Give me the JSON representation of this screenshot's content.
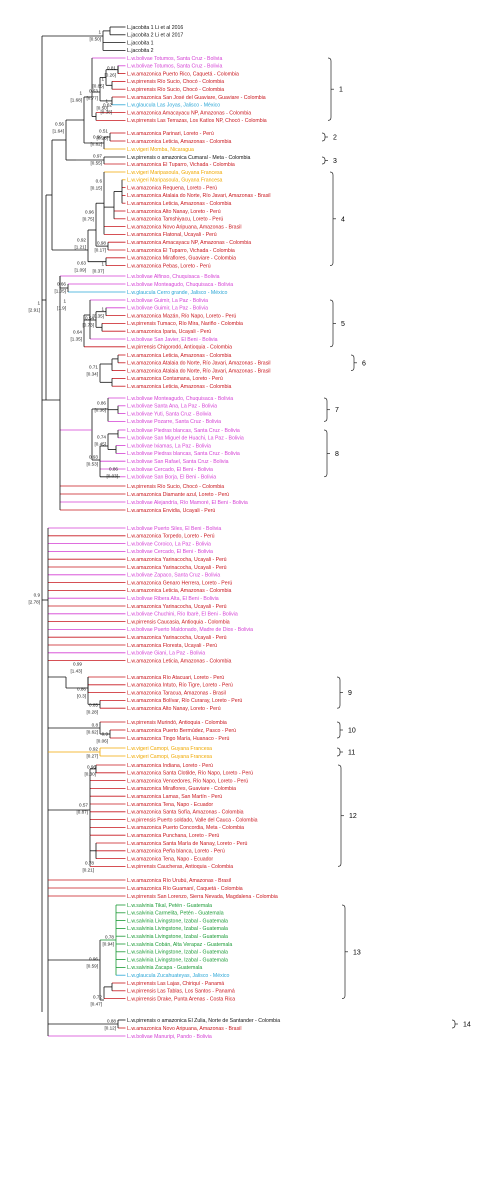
{
  "colors": {
    "black": "#111111",
    "bolivae": "#d43fd4",
    "amazonica": "#c8161d",
    "pirrensis": "#c8161d",
    "vigeri": "#f0a800",
    "glaucula": "#2aa6d6",
    "salvinia": "#1a9a35"
  },
  "support": {
    "s1": "1",
    "s1b": "[0.50]",
    "s2": "0.81",
    "s2b": "[0.26]",
    "s3": "1",
    "s3b": "[0.85]",
    "s4": "0.53",
    "s4b": "[0.77]",
    "s5": "1",
    "s5b": "[0.50]",
    "s6": "0.62",
    "s6b": "[0.38]",
    "s7": "0.51",
    "s7b": "[0.26]",
    "s8": "0.99",
    "s8b": "[0.82]",
    "s9": "1",
    "s9b": "[1.68]",
    "s10": "0.56",
    "s10b": "[1.64]",
    "s11": "0.97",
    "s11b": "[0.55]",
    "s12": "0.6",
    "s12b": "[0.15]",
    "s13": "0.96",
    "s13b": "[0.75]",
    "s14": "0.92",
    "s14b": "[1.21]",
    "s15": "0.98",
    "s15b": "[0.17]",
    "s16": "0.63",
    "s16b": "[1.09]",
    "s17": "1",
    "s17b": "[0.37]",
    "s18": "0.66",
    "s18b": "[1.05]",
    "s19": "1",
    "s19b": "[2.91]",
    "s20": "1",
    "s20b": "[1.9]",
    "s21": "0.54",
    "s21b": "[0.73]",
    "s22": "0.64",
    "s22b": "[1.35]",
    "s23": "1",
    "s23b": "[0.35]",
    "s24": "0.71",
    "s24b": "[0.34]",
    "s25": "0.86",
    "s25b": "[0.36]",
    "s26": "0.74",
    "s26b": "[0.45]",
    "s27": "0.93",
    "s27b": "[0.53]",
    "s28": "0.86",
    "s28b": "[0.03]",
    "s29": "0.9",
    "s29b": "[2.78]",
    "s30": "0.99",
    "s30b": "[1.43]",
    "s31": "0.86",
    "s31b": "[0.3]",
    "s32": "0.85",
    "s32b": "[0.28]",
    "s33": "0.8",
    "s33b": "[0.62]",
    "s34": "0.9",
    "s34b": "[0.06]",
    "s35": "0.92",
    "s35b": "[0.27]",
    "s36": "0.96",
    "s36b": "[0.30]",
    "s37": "0.57",
    "s37b": "[0.87]",
    "s38": "0.78",
    "s38b": "[0.21]",
    "s39": "0.78",
    "s39b": "[0.94]",
    "s40": "0.96",
    "s40b": "[0.59]",
    "s41": "0.72",
    "s41b": "[0.47]",
    "s42": "0.88",
    "s42b": "[0.12]"
  },
  "clades": [
    "1",
    "2",
    "3",
    "4",
    "5",
    "6",
    "7",
    "8",
    "9",
    "10",
    "11",
    "12",
    "13",
    "14"
  ],
  "tree": {
    "t1": [
      {
        "t": "L.jacobita 1 Li et al 2016",
        "c": "black"
      },
      {
        "t": "L.jacobita 2 Li et al 2017",
        "c": "black"
      },
      {
        "t": "L.jacobita 1",
        "c": "black"
      },
      {
        "t": "L.jacobita 2",
        "c": "black"
      }
    ],
    "g1": [
      {
        "t": "L.w.bolivae Totumos, Santa Cruz - Bolivia",
        "c": "bolivae"
      },
      {
        "t": "L.w.amazonica Puerto Rico, Caquetá - Colombia",
        "c": "amazonica"
      },
      {
        "t": "L.w.pirrensis Cairaca, Tayrona NP, Magdalena - Colombia",
        "c": "pirrensis"
      },
      {
        "t": "L.w.pirrensis Río Sucio, Chocó - Colombia",
        "c": "pirrensis"
      },
      {
        "t": "L.w.pirrensis Río Sucio, Chocó - Colombia",
        "c": "pirrensis"
      },
      {
        "t": "L.w.amazonica San José del Guaviare, Guaviare - Colombia",
        "c": "amazonica"
      },
      {
        "t": "L.w.glaucula Las Joyas, Jalisco - México",
        "c": "glaucula"
      },
      {
        "t": "L.w.amazonica Amacayacu NP, Amazonas - Colombia",
        "c": "amazonica"
      },
      {
        "t": "L.w.pirrensis Las Terrazas, Los Katíos NP, Chocó - Colombia",
        "c": "pirrensis"
      }
    ],
    "g2": [
      {
        "t": "L.w.amazonica Parinari, Loreto - Perú",
        "c": "amazonica"
      },
      {
        "t": "L.w.amazonica Leticia, Amazonas - Colombia",
        "c": "amazonica"
      },
      {
        "t": "L.w.vigeri Momba, Nicaragua",
        "c": "vigeri"
      }
    ],
    "g3": [
      {
        "t": "L.w.pirrensis o amazonica Cumaral - Meta - Colombia",
        "c": "black"
      },
      {
        "t": "L.w.amazonica El Tuparro, Vichada - Colombia",
        "c": "amazonica"
      }
    ],
    "g4": [
      {
        "t": "L.w.vigeri Maripasoula, Guyana Francesa",
        "c": "vigeri"
      },
      {
        "t": "L.w.amazonica Requena, Loreto - Perú",
        "c": "amazonica"
      },
      {
        "t": "L.w.amazonica Atalaia do Norte, Río Javari, Amazonas - Brasil",
        "c": "amazonica"
      },
      {
        "t": "L.w.amazonica Leticia, Amazonas - Colombia",
        "c": "amazonica"
      },
      {
        "t": "L.w.amazonica Requena, Loreto - Perú",
        "c": "amazonica"
      },
      {
        "t": "L.w.amazonica Alto Nanay, Loreto - Perú",
        "c": "amazonica"
      },
      {
        "t": "L.w.amazonica Tamshiyacu, Loreto - Perú",
        "c": "amazonica"
      },
      {
        "t": "L.w.amazonica Novo Aripuana, Amazonas - Brasil",
        "c": "amazonica"
      },
      {
        "t": "L.w.amazonica Flatonal, Ucayali - Perú",
        "c": "amazonica"
      },
      {
        "t": "L.w.amazonica Amacayacu NP, Amazonas - Colombia",
        "c": "amazonica"
      },
      {
        "t": "L.w.amazonica El Tuparro, Vichada - Colombia",
        "c": "amazonica"
      },
      {
        "t": "L.w.amazonica Miraflores, Guaviare - Colombia",
        "c": "amazonica"
      },
      {
        "t": "L.w.amazonica Pebas, Loreto - Perú",
        "c": "amazonica"
      }
    ],
    "x1": [
      {
        "t": "L.w.bolivae Alfinso, Chuquisaca - Bolivia",
        "c": "bolivae"
      },
      {
        "t": "L.w.bolivae Monteagudo, Chuquisaca - Bolivia",
        "c": "bolivae"
      },
      {
        "t": "L.w.glaucula Cerro grande, Jalisco - México",
        "c": "glaucula"
      }
    ],
    "g5": [
      {
        "t": "L.w.bolivae Guimir, La Paz - Bolivia",
        "c": "bolivae"
      },
      {
        "t": "L.w.amazonica Mazán, Río Napo, Loreto - Perú",
        "c": "amazonica"
      },
      {
        "t": "L.w.bolivae San pedro, Madidi, La Paz - Bolivia",
        "c": "bolivae"
      },
      {
        "t": "L.w.pirrensis Tumaco, Río Mira, Nariño - Colombia",
        "c": "pirrensis"
      },
      {
        "t": "L.w.amazonica Iparia, Ucayali - Perú",
        "c": "amazonica"
      },
      {
        "t": "L.w.bolivae San Javier, El Beni - Bolivia",
        "c": "bolivae"
      },
      {
        "t": "L.w.pirrensis Chigorodó, Antioquia - Colombia",
        "c": "pirrensis"
      }
    ],
    "g6": [
      {
        "t": "L.w.amazonica Leticia, Amazonas - Colombia",
        "c": "amazonica"
      },
      {
        "t": "L.w.amazonica Atalaia do Norte, Río Javari, Amazonas - Brasil",
        "c": "amazonica"
      },
      {
        "t": "L.w.amazonica Atalaia do Norte, Río Javari, Amazonas - Brasil",
        "c": "amazonica"
      },
      {
        "t": "L.w.amazonica Contamana, Loreto - Perú",
        "c": "amazonica"
      },
      {
        "t": "L.w.amazonica Leticia, Amazonas - Colombia",
        "c": "amazonica"
      }
    ],
    "g7": [
      {
        "t": "L.w.bolivae Monteagudo, Chuquisaca - Bolivia",
        "c": "bolivae"
      },
      {
        "t": "L.w.bolivae Santa Ana, La Paz - Bolivia",
        "c": "bolivae"
      },
      {
        "t": "L.w.bolivae Yuti, Santa Cruz - Bolivia",
        "c": "bolivae"
      },
      {
        "t": "L.w.bolivae Pozarre, Santa Cruz - Bolivia",
        "c": "bolivae"
      }
    ],
    "g8": [
      {
        "t": "L.w.bolivae Piedras blancas, Santa Cruz - Bolivia",
        "c": "bolivae"
      },
      {
        "t": "L.w.bolivae San Miguel de Huachi, La Paz - Bolivia",
        "c": "bolivae"
      },
      {
        "t": "L.w.bolivae Ixiamas, La Paz - Bolivia",
        "c": "bolivae"
      },
      {
        "t": "L.w.bolivae Piedras blancas, Santa Cruz - Bolivia",
        "c": "bolivae"
      },
      {
        "t": "L.w.bolivae San Rafael, Santa Cruz - Bolivia",
        "c": "bolivae"
      },
      {
        "t": "L.w.bolivae Cercado, El Beni - Bolivia",
        "c": "bolivae"
      },
      {
        "t": "L.w.bolivae San Borja, El Beni - Bolivia",
        "c": "bolivae"
      }
    ],
    "x2": [
      {
        "t": "L.w.pirrensis Río Sucio, Chocó - Colombia",
        "c": "pirrensis"
      },
      {
        "t": "L.w.amazonica Diamante azul, Loreto - Perú",
        "c": "amazonica"
      },
      {
        "t": "L.w.bolivae Alejandría, Río Mamoré, El Beni - Bolivia",
        "c": "bolivae"
      },
      {
        "t": "L.w.amazonica Envidia, Ucayali - Perú",
        "c": "amazonica"
      }
    ],
    "x3": [
      {
        "t": "L.w.bolivae Puerto Siles, El Beni - Bolivia",
        "c": "bolivae"
      },
      {
        "t": "L.w.amazonica Torpedo, Loreto - Perú",
        "c": "amazonica"
      },
      {
        "t": "L.w.bolivae Coroico, La Paz - Bolivia",
        "c": "bolivae"
      },
      {
        "t": "L.w.bolivae Cercado, El Beni - Bolivia",
        "c": "bolivae"
      },
      {
        "t": "L.w.amazonica Yarinacocha, Ucayali - Perú",
        "c": "amazonica"
      },
      {
        "t": "L.w.amazonica Yarinacocha, Ucayali - Perú",
        "c": "amazonica"
      },
      {
        "t": "L.w.bolivae Zapaco, Santa Cruz - Bolivia",
        "c": "bolivae"
      },
      {
        "t": "L.w.amazonica Genaro Herrera, Loreto - Perú",
        "c": "amazonica"
      },
      {
        "t": "L.w.amazonica Leticia, Amazonas - Colombia",
        "c": "amazonica"
      },
      {
        "t": "L.w.bolivae Ribera Alta, El Beni - Bolivia",
        "c": "bolivae"
      },
      {
        "t": "L.w.amazonica Yarinacocha, Ucayali - Perú",
        "c": "amazonica"
      },
      {
        "t": "L.w.bolivae Chuchini, Río Ibarè, El Beni - Bolivia",
        "c": "bolivae"
      },
      {
        "t": "L.w.pirrensis Caucasia, Antioquia - Colombia",
        "c": "pirrensis"
      },
      {
        "t": "L.w.bolivae Puerto Maldonado, Madre de Dios - Bolivia",
        "c": "bolivae"
      },
      {
        "t": "L.w.amazonica Yarinacocha, Ucayali - Perú",
        "c": "amazonica"
      },
      {
        "t": "L.w.amazonica Floresta, Ucayali - Perú",
        "c": "amazonica"
      },
      {
        "t": "L.w.bolivae Giani, La Paz - Bolivia",
        "c": "bolivae"
      },
      {
        "t": "L.w.amazonica Leticia, Amazonas - Colombia",
        "c": "amazonica"
      }
    ],
    "g9": [
      {
        "t": "L.w.amazonica Río Atacuari, Loreto - Perú",
        "c": "amazonica"
      },
      {
        "t": "L.w.amazonica Intuto, Río Tigre, Loreto - Perú",
        "c": "amazonica"
      },
      {
        "t": "L.w.amazonica Taracua, Amazonas - Brasil",
        "c": "amazonica"
      },
      {
        "t": "L.w.amazonica Bolívar, Río Curaray, Loreto - Perú",
        "c": "amazonica"
      },
      {
        "t": "L.w.amazonica Alto Nanay, Loreto - Perú",
        "c": "amazonica"
      }
    ],
    "g10": [
      {
        "t": "L.w.pirrensis Murindó, Antioquia - Colombia",
        "c": "pirrensis"
      },
      {
        "t": "L.w.amazonica Puerto Bermúdez, Pasco - Perú",
        "c": "amazonica"
      },
      {
        "t": "L.w.amazonica Tingo María, Huanaco - Perú",
        "c": "amazonica"
      }
    ],
    "g11": [
      {
        "t": "L.w.vigeri Camopi, Guyana Francesa",
        "c": "vigeri"
      },
      {
        "t": "L.w.vigeri Camopi, Guyana Francesa",
        "c": "vigeri"
      }
    ],
    "g12": [
      {
        "t": "L.w.amazonica Indiana, Loreto - Perú",
        "c": "amazonica"
      },
      {
        "t": "L.w.amazonica Santa Clotilde, Río Napo, Loreto - Perú",
        "c": "amazonica"
      },
      {
        "t": "L.w.amazonica Vencedores, Río Napo, Loreto - Perú",
        "c": "amazonica"
      },
      {
        "t": "L.w.amazonica Miraflores, Guaviare - Colombia",
        "c": "amazonica"
      },
      {
        "t": "L.w.amazonica Lamas, San Martín - Perú",
        "c": "amazonica"
      },
      {
        "t": "L.w.amazonica Tena, Napo - Ecuador",
        "c": "amazonica"
      },
      {
        "t": "L.w.amazonica Santa Sofía, Amazonas - Colombia",
        "c": "amazonica"
      },
      {
        "t": "L.w.pirrensis Puerto soldado, Valle del Cauca - Colombia",
        "c": "pirrensis"
      },
      {
        "t": "L.w.amazonica Puerto Concordia, Meta - Colombia",
        "c": "amazonica"
      },
      {
        "t": "L.w.amazonica Punchana, Loreto - Perú",
        "c": "amazonica"
      },
      {
        "t": "L.w.amazonica Santa María de Nanay, Loreto - Perú",
        "c": "amazonica"
      },
      {
        "t": "L.w.amazonica Peña blanca, Loreto - Perú",
        "c": "amazonica"
      },
      {
        "t": "L.w.amazonica Tena, Napo - Ecuador",
        "c": "amazonica"
      },
      {
        "t": "L.w.pirrensis Caucheras, Antioquia - Colombia",
        "c": "pirrensis"
      }
    ],
    "x4": [
      {
        "t": "L.w.amazonica Río Urubú, Amazonas - Brasil",
        "c": "amazonica"
      },
      {
        "t": "L.w.amazonica Río Guamaní, Caquetá - Colombia",
        "c": "amazonica"
      },
      {
        "t": "L.w.pirrensis San Lorenzo, Sierra Nevada, Magdalena - Colombia",
        "c": "pirrensis"
      }
    ],
    "g13": [
      {
        "t": "L.w.salvinia Tikal, Petén - Guatemala",
        "c": "salvinia"
      },
      {
        "t": "L.w.salvinia Carmelita, Petén - Guatemala",
        "c": "salvinia"
      },
      {
        "t": "L.w.salvinia Livingstone, Izabal - Guatemala",
        "c": "salvinia"
      },
      {
        "t": "L.w.salvinia Livingstone, Izabal - Guatemala",
        "c": "salvinia"
      },
      {
        "t": "L.w.salvinia Livingstone, Izabal - Guatemala",
        "c": "salvinia"
      },
      {
        "t": "L.w.salvinia Cobán, Alta Verapaz - Guatemala",
        "c": "salvinia"
      },
      {
        "t": "L.w.salvinia Livingstone, Izabal - Guatemala",
        "c": "salvinia"
      },
      {
        "t": "L.w.salvinia Livingstone, Izabal - Guatemala",
        "c": "salvinia"
      },
      {
        "t": "L.w.salvinia Zacapa - Guatemala",
        "c": "salvinia"
      },
      {
        "t": "L.w.glaucula Zucahuateyas, Jalisco - México",
        "c": "glaucula"
      },
      {
        "t": "L.w.pirrensis Las Lajas, Chiriquí - Panamá",
        "c": "pirrensis"
      },
      {
        "t": "L.w.pirrensis Las Tablas, Los Santos - Panamá",
        "c": "pirrensis"
      },
      {
        "t": "L.w.pirrensis Drake, Punta Arenas - Costa Rica",
        "c": "pirrensis"
      }
    ],
    "g14": [
      {
        "t": "L.w.pirrensis o amazonica El Zulia, Norte de Santander - Colombia",
        "c": "black"
      },
      {
        "t": "L.w.amazonica Novo Aripuana, Amazonas - Brasil",
        "c": "amazonica"
      }
    ],
    "x5": [
      {
        "t": "L.w.bolivae Manuripi, Pando - Bolivia",
        "c": "bolivae"
      }
    ]
  }
}
